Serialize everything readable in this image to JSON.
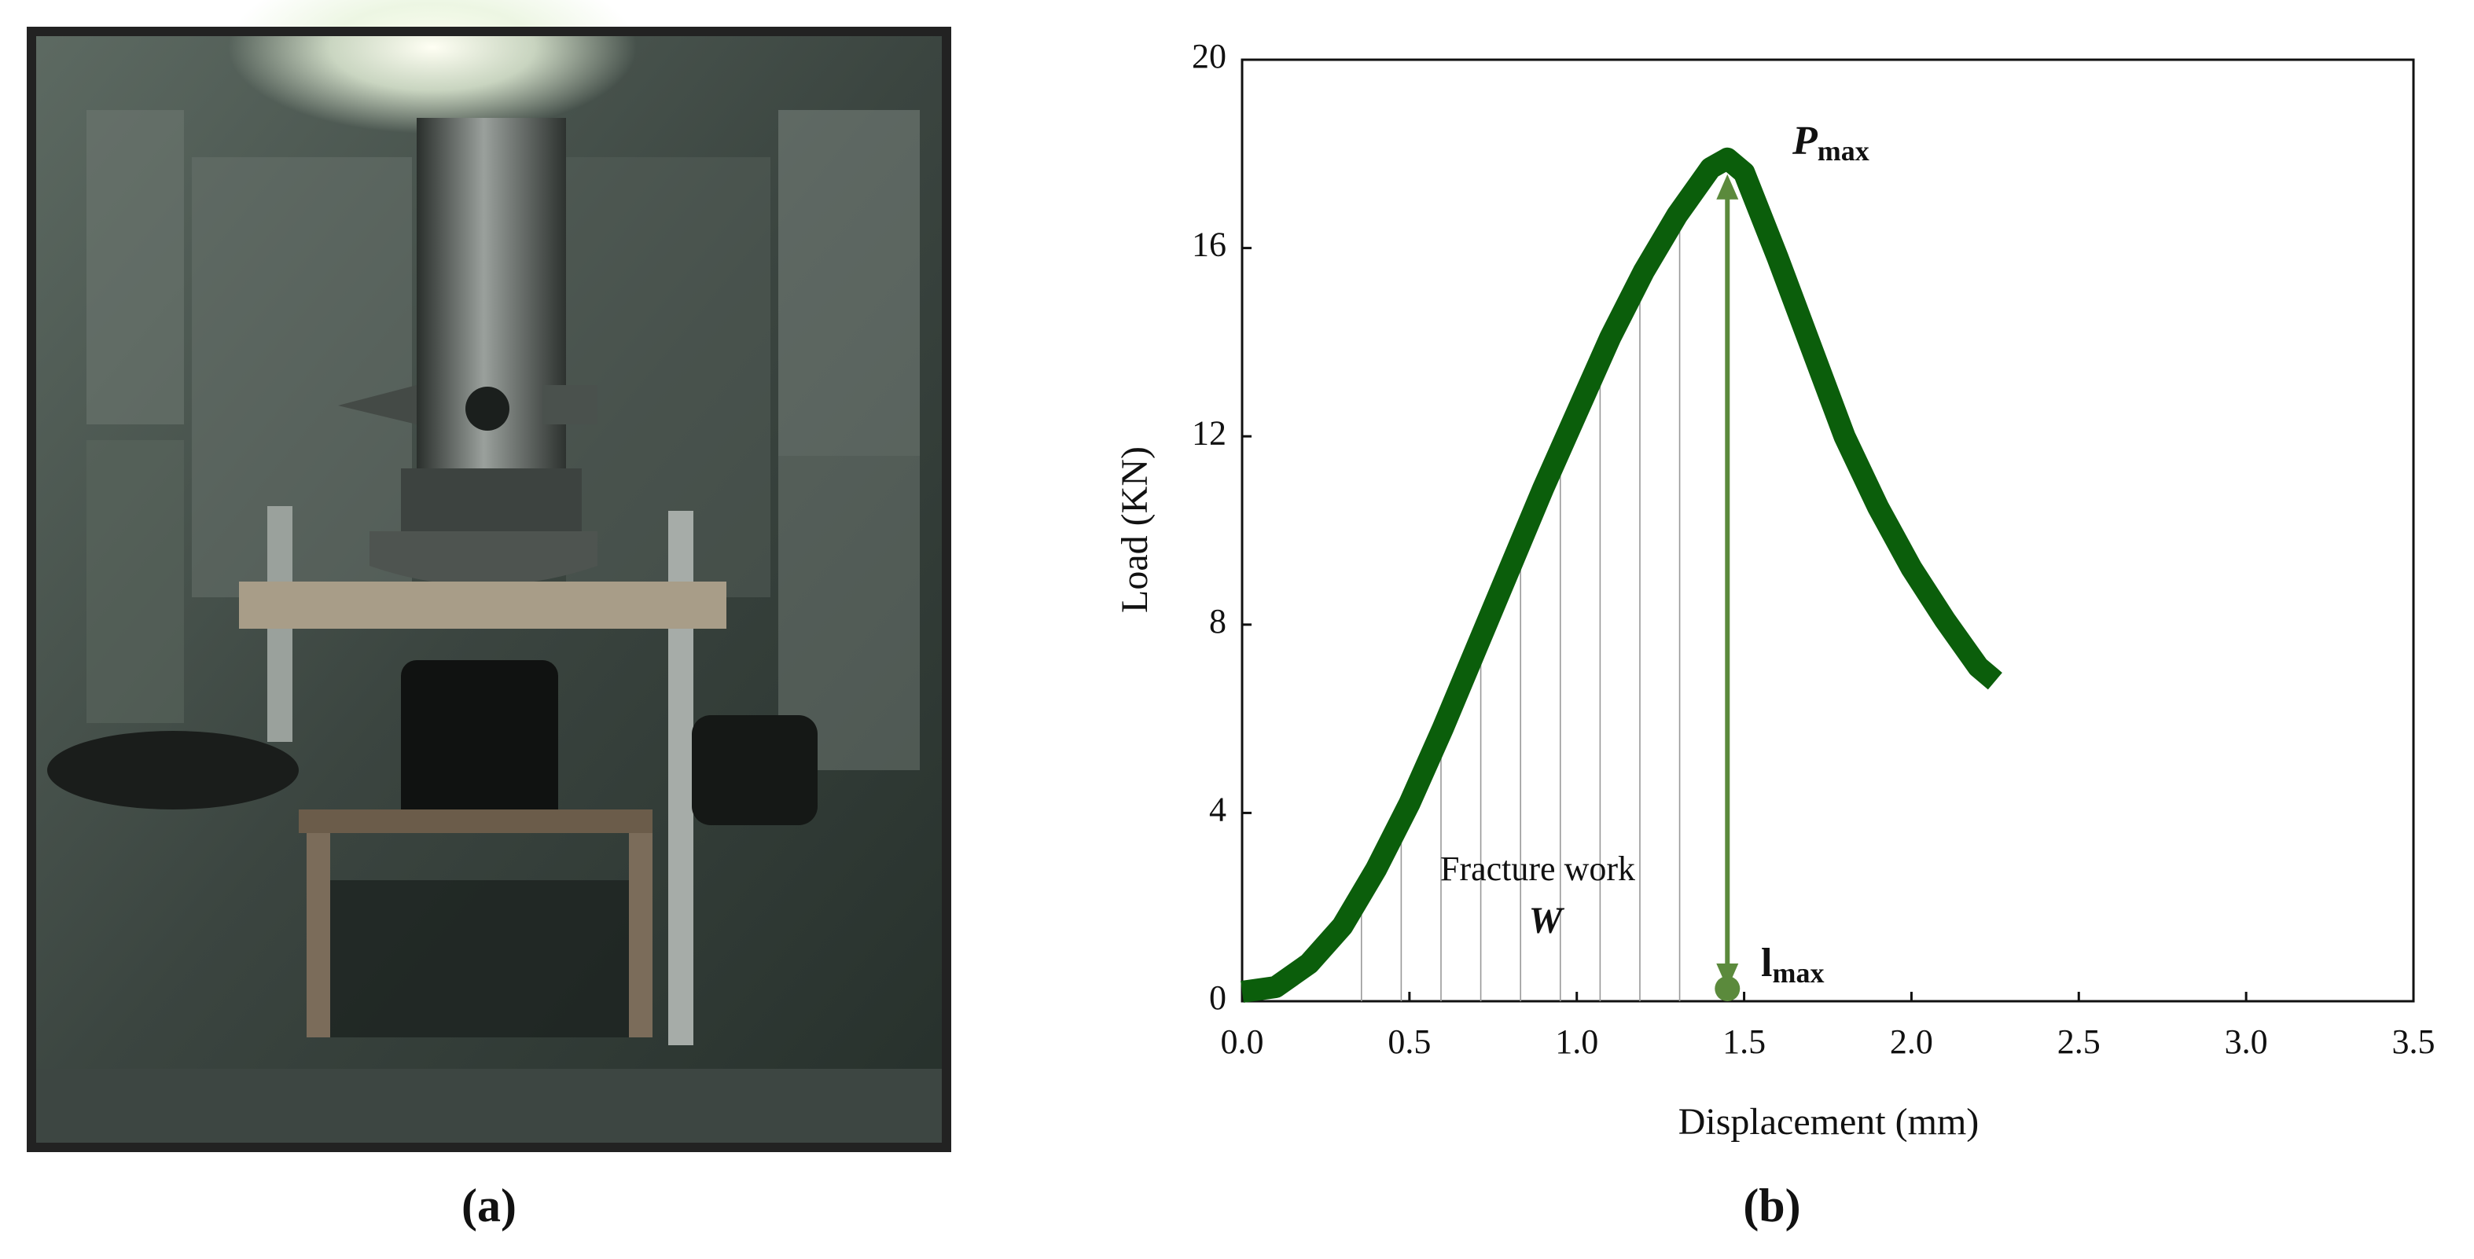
{
  "captions": [
    "(a)",
    "(b)"
  ],
  "chart_data": {
    "type": "line",
    "xlabel": "Displacement (mm)",
    "ylabel": "Load (KN)",
    "x": [
      0,
      0.1,
      0.2,
      0.3,
      0.4,
      0.5,
      0.6,
      0.7,
      0.8,
      0.9,
      1.0,
      1.1,
      1.2,
      1.3,
      1.4,
      1.45,
      1.5,
      1.6,
      1.7,
      1.8,
      1.9,
      2.0,
      2.1,
      2.2,
      2.25
    ],
    "values": [
      0.2,
      0.3,
      0.8,
      1.6,
      2.8,
      4.2,
      5.8,
      7.5,
      9.2,
      10.9,
      12.5,
      14.1,
      15.5,
      16.7,
      17.7,
      17.9,
      17.6,
      15.8,
      13.9,
      12.0,
      10.5,
      9.2,
      8.1,
      7.1,
      6.8
    ],
    "color": "#0b5e0b",
    "xlim": [
      0,
      3.5
    ],
    "xticks": [
      {
        "value": 0,
        "label": "0.0"
      },
      0.5,
      {
        "value": 1,
        "label": "1.0"
      },
      1.5,
      {
        "value": 2,
        "label": "2.0"
      },
      2.5,
      {
        "value": 3,
        "label": "3.0"
      },
      3.5
    ],
    "ylim": [
      0,
      20
    ],
    "yticks": [
      0,
      4,
      8,
      12,
      16,
      20
    ],
    "annotations": {
      "peak": {
        "text": "P",
        "sub": "max"
      },
      "disp": {
        "text": "l",
        "sub": "max"
      },
      "area": "Fracture work",
      "area_symbol": "W"
    },
    "annotation_color": "#5b8a3c"
  }
}
